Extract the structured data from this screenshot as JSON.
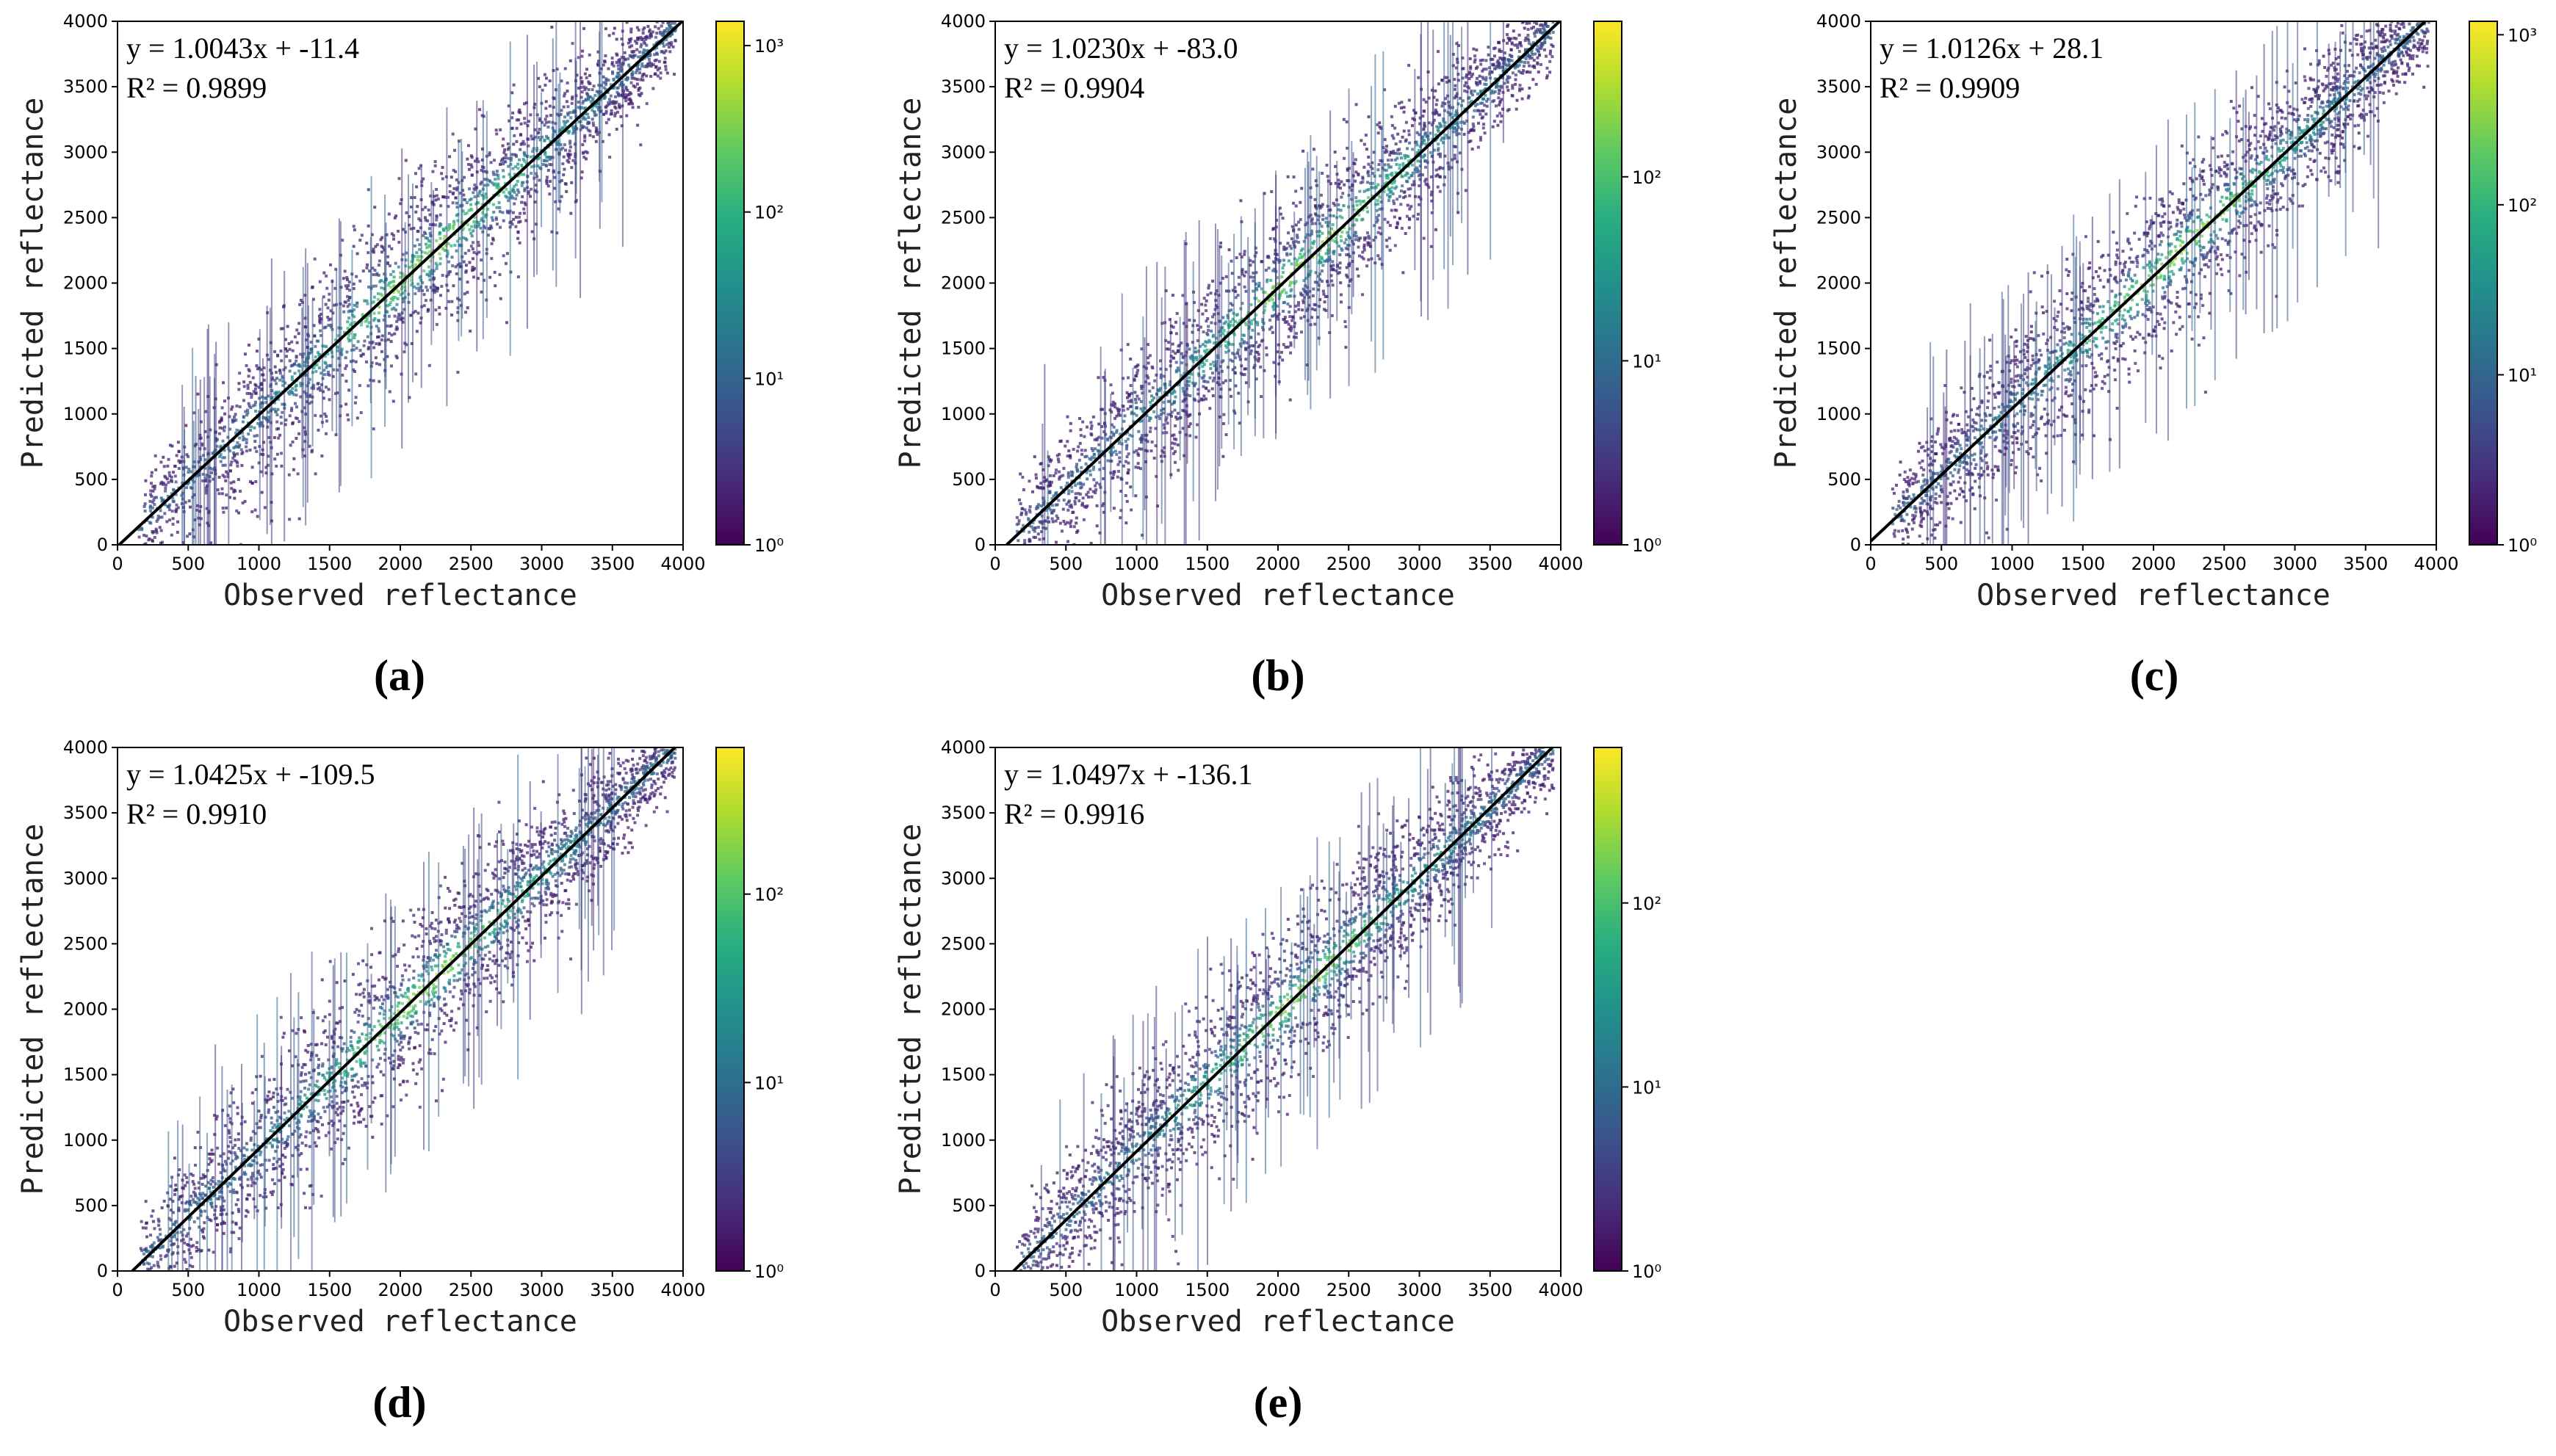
{
  "chart_data": [
    {
      "panel_label": "(a)",
      "type": "scatter",
      "style": "log-density 2D histogram",
      "title": "",
      "xlabel": "Observed reflectance",
      "ylabel": "Predicted reflectance",
      "xlim": [
        0,
        4000
      ],
      "ylim": [
        0,
        4000
      ],
      "xticks": [
        0,
        500,
        1000,
        1500,
        2000,
        2500,
        3000,
        3500,
        4000
      ],
      "yticks": [
        0,
        500,
        1000,
        1500,
        2000,
        2500,
        3000,
        3500,
        4000
      ],
      "fit": {
        "slope": 1.0043,
        "intercept": -11.4,
        "r2": 0.9899
      },
      "fit_text": "y = 1.0043x + -11.4",
      "r2_text": "R² = 0.9899",
      "colorbar": {
        "scale": "log",
        "cmap": "viridis",
        "min": 1,
        "max": 1400,
        "ticks": [
          1,
          10,
          100,
          1000
        ],
        "tick_labels": [
          "10⁰",
          "10¹",
          "10²",
          "10³"
        ]
      }
    },
    {
      "panel_label": "(b)",
      "type": "scatter",
      "style": "log-density 2D histogram",
      "title": "",
      "xlabel": "Observed reflectance",
      "ylabel": "Predicted reflectance",
      "xlim": [
        0,
        4000
      ],
      "ylim": [
        0,
        4000
      ],
      "xticks": [
        0,
        500,
        1000,
        1500,
        2000,
        2500,
        3000,
        3500,
        4000
      ],
      "yticks": [
        0,
        500,
        1000,
        1500,
        2000,
        2500,
        3000,
        3500,
        4000
      ],
      "fit": {
        "slope": 1.023,
        "intercept": -83.0,
        "r2": 0.9904
      },
      "fit_text": "y = 1.0230x + -83.0",
      "r2_text": "R² = 0.9904",
      "colorbar": {
        "scale": "log",
        "cmap": "viridis",
        "min": 1,
        "max": 700,
        "ticks": [
          1,
          10,
          100
        ],
        "tick_labels": [
          "10⁰",
          "10¹",
          "10²"
        ]
      }
    },
    {
      "panel_label": "(c)",
      "type": "scatter",
      "style": "log-density 2D histogram",
      "title": "",
      "xlabel": "Observed reflectance",
      "ylabel": "Predicted reflectance",
      "xlim": [
        0,
        4000
      ],
      "ylim": [
        0,
        4000
      ],
      "xticks": [
        0,
        500,
        1000,
        1500,
        2000,
        2500,
        3000,
        3500,
        4000
      ],
      "yticks": [
        0,
        500,
        1000,
        1500,
        2000,
        2500,
        3000,
        3500,
        4000
      ],
      "fit": {
        "slope": 1.0126,
        "intercept": 28.1,
        "r2": 0.9909
      },
      "fit_text": "y = 1.0126x + 28.1",
      "r2_text": "R² = 0.9909",
      "colorbar": {
        "scale": "log",
        "cmap": "viridis",
        "min": 1,
        "max": 1200,
        "ticks": [
          1,
          10,
          100,
          1000
        ],
        "tick_labels": [
          "10⁰",
          "10¹",
          "10²",
          "10³"
        ]
      }
    },
    {
      "panel_label": "(d)",
      "type": "scatter",
      "style": "log-density 2D histogram",
      "title": "",
      "xlabel": "Observed reflectance",
      "ylabel": "Predicted reflectance",
      "xlim": [
        0,
        4000
      ],
      "ylim": [
        0,
        4000
      ],
      "xticks": [
        0,
        500,
        1000,
        1500,
        2000,
        2500,
        3000,
        3500,
        4000
      ],
      "yticks": [
        0,
        500,
        1000,
        1500,
        2000,
        2500,
        3000,
        3500,
        4000
      ],
      "fit": {
        "slope": 1.0425,
        "intercept": -109.5,
        "r2": 0.991
      },
      "fit_text": "y = 1.0425x + -109.5",
      "r2_text": "R² = 0.9910",
      "colorbar": {
        "scale": "log",
        "cmap": "viridis",
        "min": 1,
        "max": 600,
        "ticks": [
          1,
          10,
          100
        ],
        "tick_labels": [
          "10⁰",
          "10¹",
          "10²"
        ]
      }
    },
    {
      "panel_label": "(e)",
      "type": "scatter",
      "style": "log-density 2D histogram",
      "title": "",
      "xlabel": "Observed reflectance",
      "ylabel": "Predicted reflectance",
      "xlim": [
        0,
        4000
      ],
      "ylim": [
        0,
        4000
      ],
      "xticks": [
        0,
        500,
        1000,
        1500,
        2000,
        2500,
        3000,
        3500,
        4000
      ],
      "yticks": [
        0,
        500,
        1000,
        1500,
        2000,
        2500,
        3000,
        3500,
        4000
      ],
      "fit": {
        "slope": 1.0497,
        "intercept": -136.1,
        "r2": 0.9916
      },
      "fit_text": "y = 1.0497x + -136.1",
      "r2_text": "R² = 0.9916",
      "colorbar": {
        "scale": "log",
        "cmap": "viridis",
        "min": 1,
        "max": 700,
        "ticks": [
          1,
          10,
          100
        ],
        "tick_labels": [
          "10⁰",
          "10¹",
          "10²"
        ]
      }
    }
  ]
}
